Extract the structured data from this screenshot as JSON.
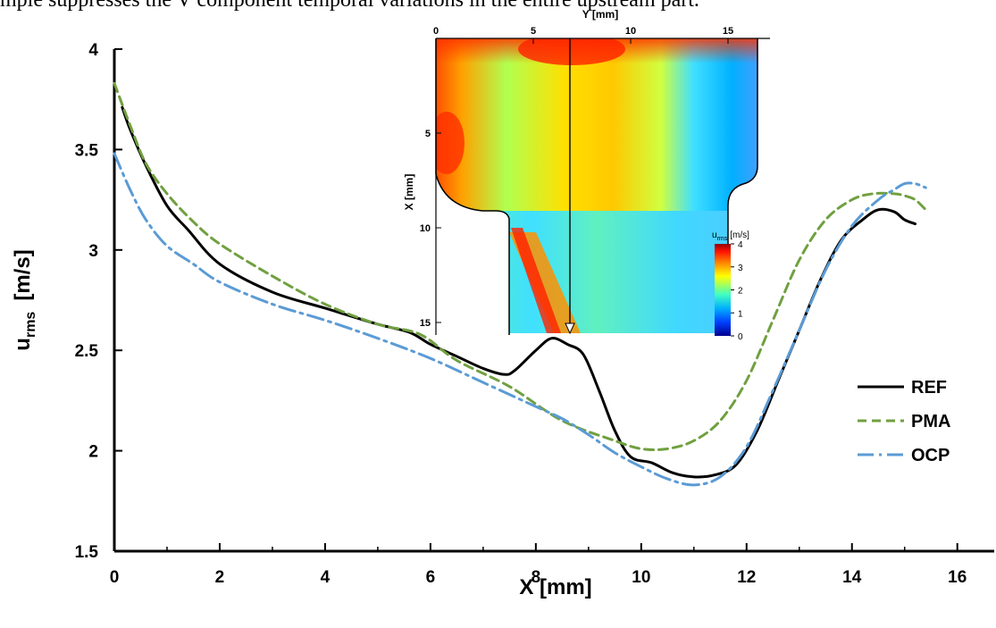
{
  "caption": "mple suppresses the V component temporal variations in the entire upstream part.",
  "chart_data": {
    "type": "line",
    "xlabel": "X [mm]",
    "ylabel_main": "u",
    "ylabel_sub": "rms",
    "ylabel_unit": "[m/s]",
    "xlim": [
      0,
      16.7
    ],
    "ylim": [
      1.5,
      4
    ],
    "xticks": [
      0,
      2,
      4,
      6,
      8,
      10,
      12,
      14,
      16
    ],
    "yticks": [
      1.5,
      2,
      2.5,
      3,
      3.5,
      4
    ],
    "xtick_labels": [
      "0",
      "2",
      "4",
      "6",
      "8",
      "10",
      "12",
      "14",
      "16"
    ],
    "ytick_labels": [
      "1.5",
      "2",
      "2.5",
      "3",
      "3.5",
      "4"
    ],
    "grid": false,
    "legend_position": "right",
    "series": [
      {
        "name": "REF",
        "color": "#000000",
        "dash": "solid",
        "x": [
          0.15,
          0.3,
          0.6,
          1.0,
          1.4,
          2.0,
          3.0,
          4.0,
          5.0,
          5.6,
          6.0,
          6.5,
          7.0,
          7.4,
          7.6,
          8.0,
          8.3,
          8.6,
          8.9,
          9.2,
          9.5,
          9.8,
          10.2,
          10.6,
          11.0,
          11.4,
          11.8,
          12.2,
          12.6,
          13.0,
          13.4,
          13.8,
          14.2,
          14.5,
          14.8,
          15.0,
          15.2
        ],
        "y": [
          3.71,
          3.6,
          3.42,
          3.22,
          3.1,
          2.93,
          2.79,
          2.71,
          2.63,
          2.59,
          2.53,
          2.47,
          2.41,
          2.38,
          2.4,
          2.5,
          2.56,
          2.53,
          2.48,
          2.3,
          2.1,
          1.97,
          1.94,
          1.89,
          1.87,
          1.88,
          1.93,
          2.1,
          2.35,
          2.6,
          2.85,
          3.05,
          3.15,
          3.2,
          3.19,
          3.15,
          3.13
        ]
      },
      {
        "name": "PMA",
        "color": "#70a040",
        "dash": "dashed",
        "x": [
          0.0,
          0.3,
          0.6,
          1.0,
          1.5,
          2.0,
          3.0,
          4.0,
          5.0,
          5.8,
          6.5,
          7.5,
          8.5,
          9.5,
          10.0,
          10.5,
          11.0,
          11.5,
          12.0,
          12.5,
          13.0,
          13.5,
          14.0,
          14.4,
          14.8,
          15.0,
          15.2,
          15.4
        ],
        "y": [
          3.83,
          3.62,
          3.43,
          3.28,
          3.14,
          3.03,
          2.87,
          2.73,
          2.63,
          2.58,
          2.45,
          2.32,
          2.15,
          2.05,
          2.01,
          2.01,
          2.05,
          2.15,
          2.35,
          2.65,
          2.95,
          3.15,
          3.25,
          3.28,
          3.28,
          3.27,
          3.25,
          3.2
        ]
      },
      {
        "name": "OCP",
        "color": "#5b9bd5",
        "dash": "dashdot",
        "x": [
          0.0,
          0.3,
          0.6,
          1.0,
          1.5,
          2.0,
          3.0,
          4.0,
          5.0,
          6.0,
          7.0,
          8.0,
          8.5,
          9.0,
          9.5,
          10.0,
          10.5,
          11.0,
          11.5,
          12.0,
          12.5,
          13.0,
          13.5,
          14.0,
          14.5,
          14.8,
          15.0,
          15.2,
          15.4
        ],
        "y": [
          3.48,
          3.3,
          3.15,
          3.02,
          2.93,
          2.84,
          2.73,
          2.65,
          2.56,
          2.46,
          2.34,
          2.22,
          2.16,
          2.08,
          1.99,
          1.92,
          1.86,
          1.83,
          1.87,
          2.02,
          2.3,
          2.6,
          2.9,
          3.12,
          3.25,
          3.3,
          3.33,
          3.33,
          3.31
        ]
      }
    ],
    "inset": {
      "title": "Y [mm]",
      "ylabel": "X [mm]",
      "top_ticks": [
        "0",
        "5",
        "10",
        "15"
      ],
      "left_ticks": [
        "5",
        "10",
        "15"
      ],
      "top_tick_values": [
        0,
        5,
        10,
        15
      ],
      "left_tick_values": [
        5,
        10,
        15
      ],
      "colorbar_title_main": "u",
      "colorbar_title_sub": "rms",
      "colorbar_title_unit": "[m/s]",
      "colorbar_ticks": [
        "4",
        "3",
        "2",
        "1",
        "0"
      ],
      "colorbar_range": [
        0,
        4
      ],
      "profile_line_y": 6.9
    }
  }
}
